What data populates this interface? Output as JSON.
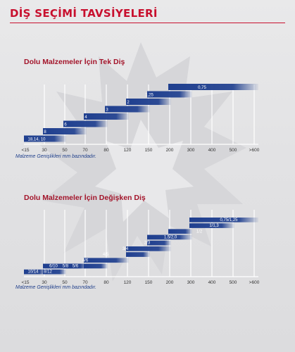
{
  "page": {
    "title": "DİŞ SEÇİMİ TAVSİYELERİ"
  },
  "chart_data": [
    {
      "type": "bar",
      "title": "Dolu Malzemeler İçin Tek Diş",
      "note": "Malzeme Genişlikleri mm bazındadır.",
      "categories": [
        "<15",
        "30",
        "50",
        "70",
        "80",
        "120",
        "150",
        "200",
        "300",
        "400",
        "500",
        ">600"
      ],
      "bars": [
        {
          "label": "18,14, 10",
          "start": "<15",
          "end": "50"
        },
        {
          "label": "8",
          "start": "30",
          "end": "70"
        },
        {
          "label": "6",
          "start": "50",
          "end": "80"
        },
        {
          "label": "4",
          "start": "70",
          "end": "120"
        },
        {
          "label": "3",
          "start": "80",
          "end": "150"
        },
        {
          "label": "2",
          "start": "120",
          "end": "200"
        },
        {
          "label": "1,25",
          "start": "150",
          "end": "300"
        },
        {
          "label": "0,75",
          "start": "200",
          "end": ">600"
        }
      ],
      "colors": {
        "bar": "#1f3f8f",
        "text": "#ffffff",
        "grid": "#ffffff"
      }
    },
    {
      "type": "bar",
      "title": "Dolu Malzemeler İçin Değişken Diş",
      "note": "Malzeme Genişlikleri mm bazındadır.",
      "categories": [
        "<15",
        "30",
        "50",
        "70",
        "80",
        "120",
        "150",
        "200",
        "300",
        "400",
        "500",
        ">600"
      ],
      "bars": [
        {
          "label": "10/14",
          "start": "<15",
          "end": "30"
        },
        {
          "label": "8/12",
          "start": "30",
          "end": "50"
        },
        {
          "label": "6/10",
          "start": "30",
          "end": "70"
        },
        {
          "label": "5/8",
          "start": "50",
          "end": "70"
        },
        {
          "label": "5/6",
          "start": "70",
          "end": "80"
        },
        {
          "label": "4/6",
          "start": "70",
          "end": "120"
        },
        {
          "label": "4/5",
          "start": "120",
          "end": "150"
        },
        {
          "label": "3/4",
          "start": "120",
          "end": "200"
        },
        {
          "label": "2/3",
          "start": "150",
          "end": "200"
        },
        {
          "label": "1,5/2,0",
          "start": "150",
          "end": "300"
        },
        {
          "label": "1/2",
          "start": "200",
          "end": "300"
        },
        {
          "label": "1/1,3",
          "start": "300",
          "end": "500"
        },
        {
          "label": "0,75/1,25",
          "start": "300",
          "end": ">600"
        }
      ],
      "colors": {
        "bar": "#1f3f8f",
        "text": "#ffffff",
        "grid": "#ffffff"
      }
    }
  ]
}
